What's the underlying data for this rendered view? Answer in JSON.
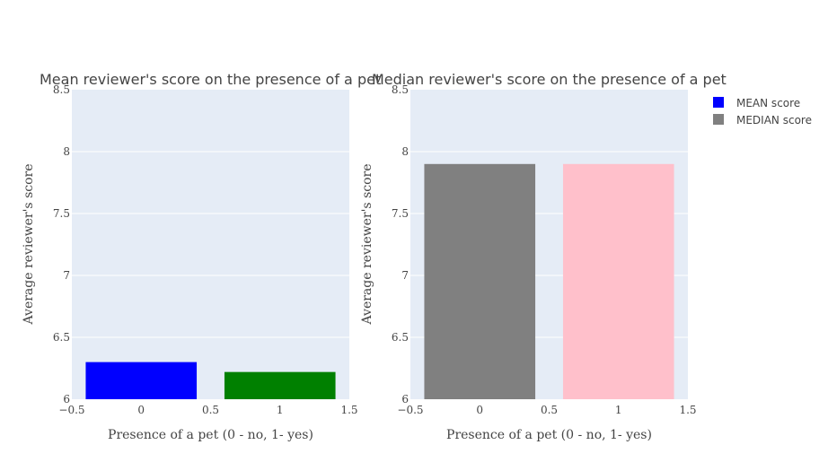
{
  "chart_data": [
    {
      "type": "bar",
      "title": "Mean reviewer's score on the presence of a pet",
      "xlabel": "Presence of a pet (0 - no, 1- yes)",
      "ylabel": "Average reviewer's score",
      "categories": [
        0,
        1
      ],
      "values": [
        6.3,
        6.22
      ],
      "bar_colors": [
        "#0000ff",
        "#008000"
      ],
      "xlim": [
        -0.5,
        1.5
      ],
      "ylim": [
        6,
        8.5
      ],
      "xticks": [
        "−0.5",
        "0",
        "0.5",
        "1",
        "1.5"
      ],
      "xtick_values": [
        -0.5,
        0,
        0.5,
        1,
        1.5
      ],
      "yticks": [
        "6",
        "6.5",
        "7",
        "7.5",
        "8",
        "8.5"
      ],
      "ytick_values": [
        6,
        6.5,
        7,
        7.5,
        8,
        8.5
      ],
      "grid": true
    },
    {
      "type": "bar",
      "title": "Median reviewer's score on the presence of a pet",
      "xlabel": "Presence of a pet (0 - no, 1- yes)",
      "ylabel": "Average reviewer's score",
      "categories": [
        0,
        1
      ],
      "values": [
        7.9,
        7.9
      ],
      "bar_colors": [
        "#808080",
        "#ffc0cb"
      ],
      "xlim": [
        -0.5,
        1.5
      ],
      "ylim": [
        6,
        8.5
      ],
      "xticks": [
        "−0.5",
        "0",
        "0.5",
        "1",
        "1.5"
      ],
      "xtick_values": [
        -0.5,
        0,
        0.5,
        1,
        1.5
      ],
      "yticks": [
        "6",
        "6.5",
        "7",
        "7.5",
        "8",
        "8.5"
      ],
      "ytick_values": [
        6,
        6.5,
        7,
        7.5,
        8,
        8.5
      ],
      "grid": true
    }
  ],
  "legend": {
    "placement": "top-right",
    "items": [
      {
        "label": "MEAN score",
        "color": "#0000ff"
      },
      {
        "label": "MEDIAN score",
        "color": "#808080"
      }
    ]
  }
}
